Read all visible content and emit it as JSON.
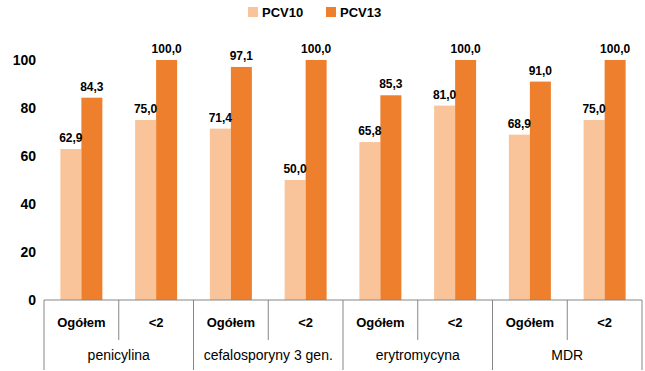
{
  "chart_data": {
    "type": "bar",
    "categories": [
      "Ogółem",
      "<2",
      "Ogółem",
      "<2",
      "Ogółem",
      "<2",
      "Ogółem",
      "<2"
    ],
    "category_groups": [
      "penicylina",
      "cefalosporyny 3 gen.",
      "erytromycyna",
      "MDR"
    ],
    "series": [
      {
        "name": "PCV10",
        "color": "#f9c49a",
        "values": [
          62.9,
          75.0,
          71.4,
          50.0,
          65.8,
          81.0,
          68.9,
          75.0
        ],
        "value_labels": [
          "62,9",
          "75,0",
          "71,4",
          "50,0",
          "65,8",
          "81,0",
          "68,9",
          "75,0"
        ]
      },
      {
        "name": "PCV13",
        "color": "#ee7f2d",
        "values": [
          84.3,
          100.0,
          97.1,
          100.0,
          85.3,
          100.0,
          91.0,
          100.0
        ],
        "value_labels": [
          "84,3",
          "100,0",
          "97,1",
          "100,0",
          "85,3",
          "100,0",
          "91,0",
          "100,0"
        ]
      }
    ],
    "ylim": [
      0,
      100
    ],
    "yticks": [
      0,
      20,
      40,
      60,
      80,
      100
    ],
    "grid": false,
    "legend": "top",
    "data_labels": true
  }
}
